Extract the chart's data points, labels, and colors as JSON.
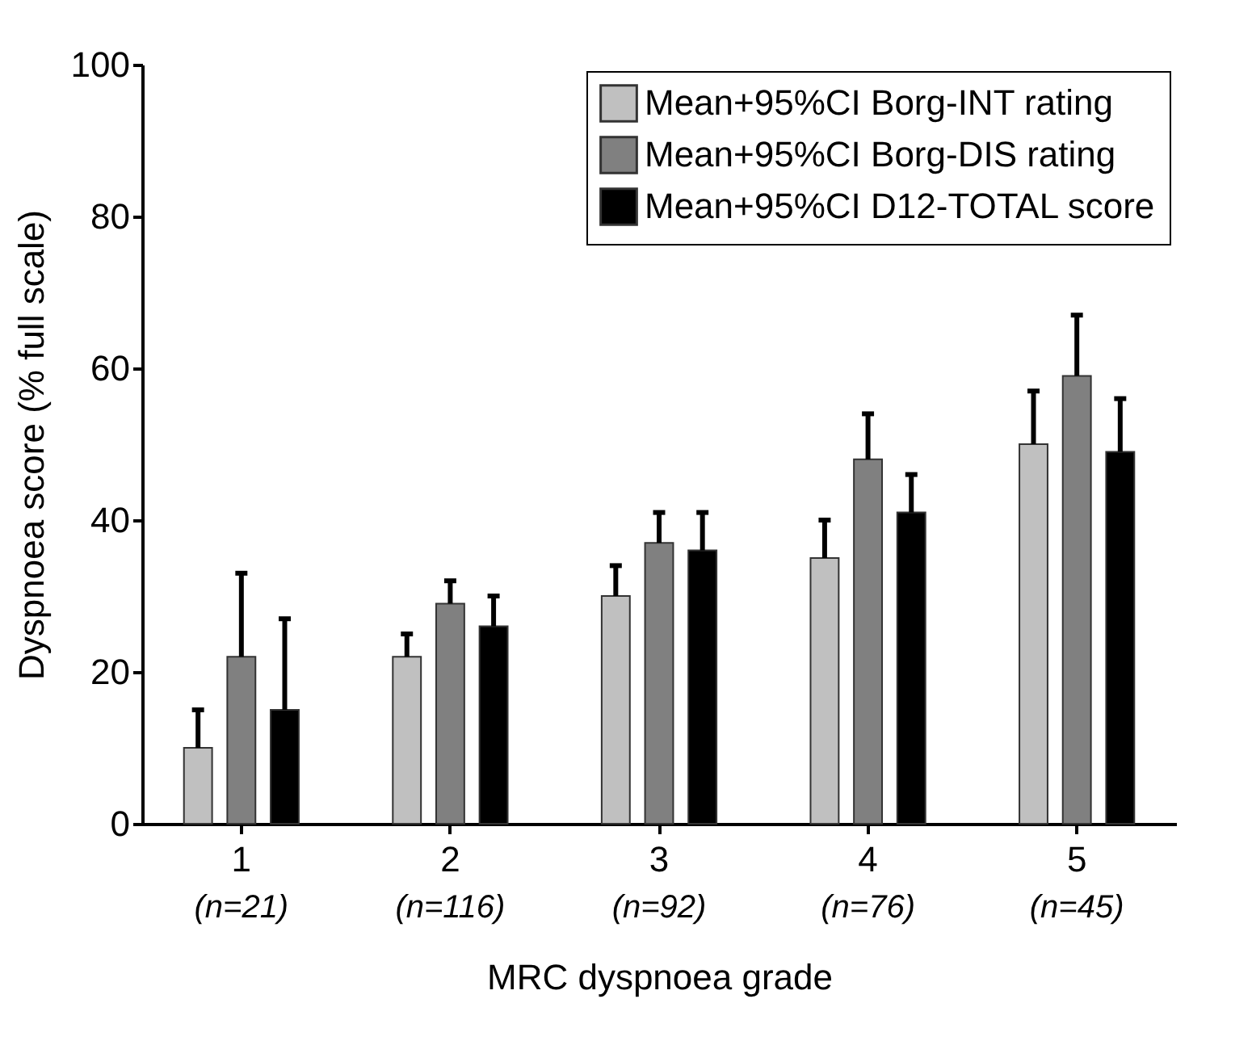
{
  "chart_data": {
    "type": "bar",
    "xlabel": "MRC dyspnoea grade",
    "ylabel": "Dyspnoea score (% full scale)",
    "categories": [
      "1",
      "2",
      "3",
      "4",
      "5"
    ],
    "series": [
      {
        "name": "Mean+95%CI Borg-INT rating",
        "color": "#c0c0c0",
        "values": [
          10,
          22,
          30,
          35,
          50
        ],
        "errors": [
          [
            10,
            15
          ],
          [
            22,
            25
          ],
          [
            30,
            34
          ],
          [
            35,
            40
          ],
          [
            50,
            57
          ]
        ]
      },
      {
        "name": "Mean+95%CI Borg-DIS rating",
        "color": "#808080",
        "values": [
          22,
          29,
          37,
          48,
          59
        ],
        "errors": [
          [
            22,
            33
          ],
          [
            29,
            32
          ],
          [
            37,
            41
          ],
          [
            48,
            54
          ],
          [
            59,
            67
          ]
        ]
      },
      {
        "name": "Mean+95%CI D12-TOTAL score",
        "color": "#000000",
        "values": [
          15,
          26,
          36,
          41,
          49
        ],
        "errors": [
          [
            15,
            27
          ],
          [
            26,
            30
          ],
          [
            36,
            41
          ],
          [
            41,
            46
          ],
          [
            49,
            56
          ]
        ]
      }
    ],
    "annotations": [
      "(n=21)",
      "(n=116)",
      "(n=92)",
      "(n=76)",
      "(n=45)"
    ],
    "ylim": [
      0,
      100
    ],
    "yticks": [
      0,
      20,
      40,
      60,
      80,
      100
    ],
    "grid": false,
    "legend": "top right"
  }
}
